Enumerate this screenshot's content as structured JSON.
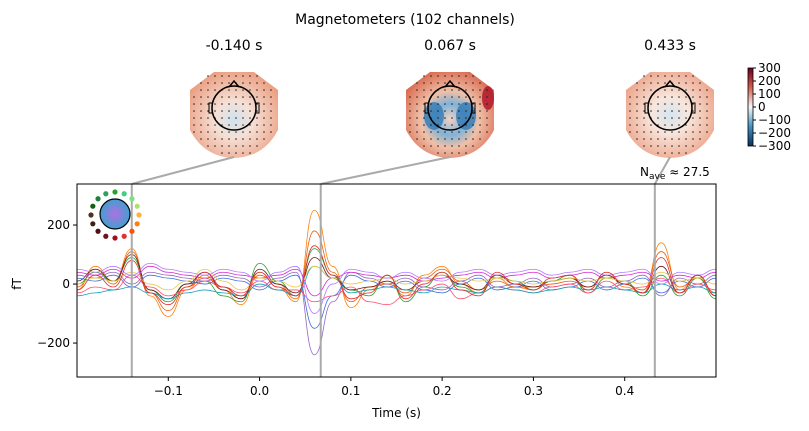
{
  "chart_data": {
    "type": "line",
    "title": "Magnetometers (102 channels)",
    "xlabel": "Time (s)",
    "ylabel": "fT",
    "xlim": [
      -0.2,
      0.5
    ],
    "ylim": [
      -315,
      339
    ],
    "xticks": [
      -0.1,
      0.0,
      0.1,
      0.2,
      0.3,
      0.4
    ],
    "xtick_labels": [
      "−0.1",
      "0.0",
      "0.1",
      "0.2",
      "0.3",
      "0.4"
    ],
    "yticks": [
      200,
      0,
      -200
    ],
    "ytick_labels": [
      "200",
      "0",
      "−200"
    ],
    "nave_label": "N",
    "nave_sub": "ave",
    "nave_value": "≈ 27.5",
    "topomaps": [
      {
        "time": -0.14,
        "label": "-0.140 s"
      },
      {
        "time": 0.067,
        "label": "0.067 s"
      },
      {
        "time": 0.433,
        "label": "0.433 s"
      }
    ],
    "colorbar": {
      "range": [
        -300,
        300
      ],
      "tick_labels": [
        "300",
        "200",
        "100",
        "0",
        "−100",
        "−200",
        "−300"
      ],
      "ticks": [
        300,
        200,
        100,
        0,
        -100,
        -200,
        -300
      ]
    },
    "x": [
      -0.2,
      -0.18,
      -0.16,
      -0.14,
      -0.12,
      -0.1,
      -0.08,
      -0.06,
      -0.04,
      -0.02,
      0.0,
      0.02,
      0.04,
      0.06,
      0.08,
      0.1,
      0.12,
      0.14,
      0.16,
      0.18,
      0.2,
      0.22,
      0.24,
      0.26,
      0.28,
      0.3,
      0.32,
      0.34,
      0.36,
      0.38,
      0.4,
      0.42,
      0.44,
      0.46,
      0.48,
      0.5
    ],
    "series": [
      {
        "name": "orange",
        "color": "#ff7f0e",
        "values": [
          -20,
          60,
          10,
          120,
          -40,
          -110,
          -20,
          30,
          -20,
          -70,
          40,
          -10,
          -60,
          250,
          60,
          -80,
          -20,
          10,
          -40,
          30,
          60,
          0,
          -30,
          20,
          -10,
          -20,
          10,
          20,
          -20,
          40,
          -10,
          -30,
          140,
          -20,
          30,
          -40
        ]
      },
      {
        "name": "dark-orange",
        "color": "#e8600a",
        "values": [
          -10,
          50,
          0,
          110,
          -30,
          -90,
          -10,
          20,
          -10,
          -50,
          30,
          0,
          -50,
          180,
          40,
          -60,
          -10,
          0,
          -30,
          20,
          50,
          10,
          -20,
          10,
          -10,
          -10,
          0,
          10,
          -10,
          30,
          0,
          -20,
          110,
          -10,
          20,
          -30
        ]
      },
      {
        "name": "green",
        "color": "#2ca02c",
        "values": [
          0,
          40,
          10,
          90,
          -20,
          -60,
          0,
          10,
          -40,
          -60,
          70,
          10,
          -40,
          120,
          30,
          -20,
          -40,
          30,
          -60,
          -10,
          40,
          -10,
          -30,
          30,
          10,
          -20,
          10,
          30,
          -30,
          20,
          10,
          -40,
          30,
          -40,
          20,
          -50
        ]
      },
      {
        "name": "dark-red",
        "color": "#6b1a1a",
        "values": [
          10,
          50,
          10,
          100,
          -20,
          -50,
          0,
          40,
          -20,
          -50,
          50,
          0,
          -30,
          90,
          20,
          -20,
          -10,
          10,
          -20,
          10,
          30,
          0,
          -20,
          30,
          0,
          -10,
          10,
          20,
          -10,
          30,
          0,
          -30,
          60,
          -30,
          30,
          -40
        ]
      },
      {
        "name": "purple",
        "color": "#9467bd",
        "values": [
          30,
          20,
          40,
          0,
          40,
          30,
          20,
          10,
          30,
          20,
          -10,
          20,
          40,
          -240,
          -60,
          40,
          20,
          0,
          20,
          -10,
          -20,
          10,
          30,
          -10,
          0,
          20,
          -10,
          0,
          20,
          -10,
          10,
          30,
          -40,
          20,
          0,
          30
        ]
      },
      {
        "name": "blue",
        "color": "#3d6fe0",
        "values": [
          20,
          10,
          30,
          -10,
          30,
          20,
          10,
          0,
          20,
          10,
          -20,
          10,
          30,
          -150,
          -40,
          30,
          10,
          -10,
          10,
          -20,
          -30,
          0,
          20,
          -20,
          -10,
          10,
          -20,
          -10,
          10,
          -20,
          0,
          20,
          -30,
          10,
          -10,
          20
        ]
      },
      {
        "name": "pink",
        "color": "#ff4d6d",
        "values": [
          -30,
          -10,
          -20,
          30,
          -10,
          -40,
          -20,
          10,
          -10,
          -30,
          10,
          -20,
          -20,
          -60,
          -40,
          -10,
          -60,
          -70,
          -40,
          -20,
          0,
          -50,
          -30,
          -10,
          -20,
          -30,
          -10,
          0,
          -30,
          10,
          -20,
          -10,
          20,
          -30,
          0,
          -20
        ]
      },
      {
        "name": "magenta",
        "color": "#d62ad6",
        "values": [
          40,
          30,
          50,
          20,
          60,
          40,
          30,
          20,
          40,
          30,
          20,
          30,
          50,
          -40,
          20,
          40,
          30,
          20,
          30,
          10,
          20,
          30,
          40,
          20,
          30,
          40,
          20,
          30,
          40,
          20,
          30,
          40,
          10,
          30,
          20,
          40
        ]
      },
      {
        "name": "cyan",
        "color": "#17a2b8",
        "values": [
          -40,
          -30,
          -20,
          -10,
          -30,
          -50,
          -30,
          -20,
          -30,
          -40,
          0,
          -20,
          -40,
          60,
          20,
          -30,
          -20,
          -10,
          -20,
          -30,
          -10,
          -20,
          -30,
          -10,
          -20,
          -30,
          -20,
          -10,
          -20,
          -10,
          -20,
          -30,
          0,
          -20,
          -10,
          -30
        ]
      },
      {
        "name": "yellow",
        "color": "#e6c84f",
        "values": [
          0,
          20,
          10,
          40,
          0,
          -20,
          10,
          50,
          10,
          -20,
          20,
          10,
          -10,
          60,
          20,
          0,
          10,
          20,
          0,
          10,
          30,
          20,
          10,
          20,
          10,
          0,
          10,
          20,
          10,
          20,
          10,
          0,
          40,
          10,
          20,
          0
        ]
      },
      {
        "name": "lavender",
        "color": "#b07cff",
        "values": [
          50,
          40,
          60,
          30,
          70,
          50,
          40,
          30,
          50,
          40,
          10,
          40,
          60,
          -100,
          0,
          50,
          40,
          20,
          40,
          20,
          10,
          40,
          50,
          30,
          40,
          50,
          30,
          40,
          50,
          30,
          40,
          50,
          0,
          40,
          30,
          50
        ]
      },
      {
        "name": "red",
        "color": "#e03030",
        "values": [
          -20,
          30,
          -10,
          80,
          -30,
          -70,
          -10,
          40,
          -10,
          -40,
          40,
          -10,
          -40,
          130,
          30,
          -50,
          -30,
          30,
          -50,
          0,
          40,
          -20,
          -40,
          40,
          0,
          -20,
          20,
          30,
          -20,
          40,
          0,
          -30,
          90,
          -30,
          30,
          -40
        ]
      }
    ]
  }
}
